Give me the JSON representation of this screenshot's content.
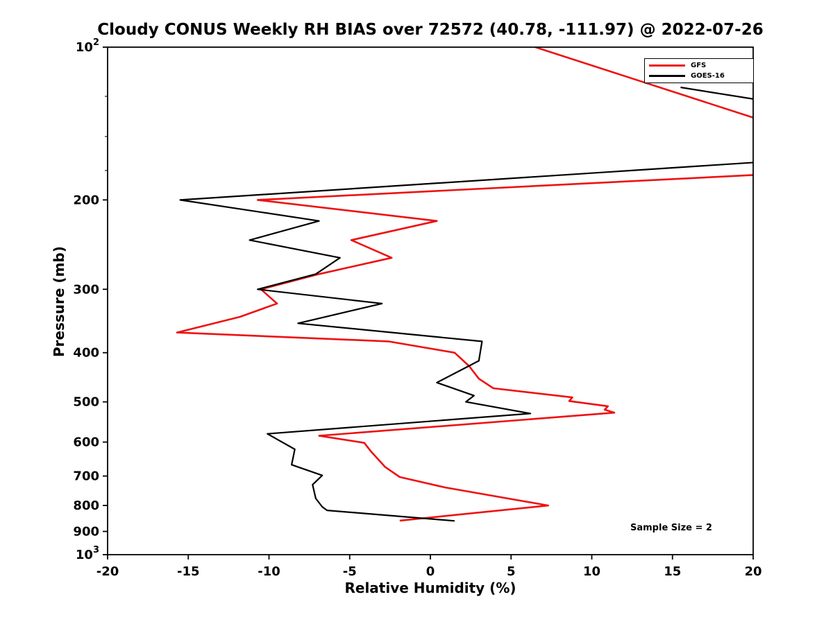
{
  "chart_data": {
    "type": "line",
    "title": "Cloudy CONUS Weekly RH BIAS over 72572 (40.78, -111.97) @ 2022-07-26",
    "annotation": "Sample Size = 2",
    "legend_position": "upper right",
    "grid": false,
    "x_axis": {
      "label": "Relative Humidity (%)",
      "min": -20,
      "max": 20,
      "ticks": [
        {
          "v": -20,
          "label": "-20"
        },
        {
          "v": -15,
          "label": "-15"
        },
        {
          "v": -10,
          "label": "-10"
        },
        {
          "v": -5,
          "label": "-5"
        },
        {
          "v": 0,
          "label": "0"
        },
        {
          "v": 5,
          "label": "5"
        },
        {
          "v": 10,
          "label": "10"
        },
        {
          "v": 15,
          "label": "15"
        },
        {
          "v": 20,
          "label": "20"
        }
      ]
    },
    "y_axis": {
      "label": "Pressure (mb)",
      "scale": "log",
      "inverted": true,
      "min": 100,
      "max": 1000,
      "major_ticks": [
        {
          "p": 100,
          "label": "10",
          "exp": "2"
        },
        {
          "p": 200,
          "label": "200"
        },
        {
          "p": 300,
          "label": "300"
        },
        {
          "p": 400,
          "label": "400"
        },
        {
          "p": 500,
          "label": "500"
        },
        {
          "p": 600,
          "label": "600"
        },
        {
          "p": 700,
          "label": "700"
        },
        {
          "p": 800,
          "label": "800"
        },
        {
          "p": 900,
          "label": "900"
        },
        {
          "p": 1000,
          "label": "10",
          "exp": "3"
        }
      ],
      "minor_ticks": [
        125,
        150,
        175
      ]
    },
    "series": [
      {
        "name": "GFS",
        "color": "#ee1111",
        "linewidth": 2.6,
        "units": "rh_bias_percent_vs_pressure_mb",
        "segments": [
          [
            [
              6.5,
              100
            ],
            [
              21,
              141
            ]
          ],
          [
            [
              21,
              178
            ],
            [
              -10.7,
              200
            ],
            [
              0.4,
              220
            ],
            [
              -4.9,
              240
            ],
            [
              -2.4,
              260
            ],
            [
              -6.9,
              280
            ],
            [
              -10.5,
              300
            ],
            [
              -9.5,
              320
            ],
            [
              -11.8,
              340
            ],
            [
              -15.7,
              365
            ],
            [
              -2.6,
              380
            ],
            [
              1.5,
              400
            ],
            [
              2.4,
              425
            ],
            [
              3.0,
              450
            ],
            [
              3.9,
              470
            ],
            [
              8.8,
              490
            ],
            [
              8.6,
              498
            ],
            [
              11.0,
              510
            ],
            [
              10.8,
              518
            ],
            [
              11.4,
              525
            ],
            [
              -6.9,
              583
            ],
            [
              -4.1,
              602
            ],
            [
              -3.7,
              625
            ],
            [
              -2.8,
              672
            ],
            [
              -1.9,
              703
            ],
            [
              0.9,
              737
            ],
            [
              7.3,
              800
            ],
            [
              -1.9,
              857
            ]
          ]
        ]
      },
      {
        "name": "GOES-16",
        "color": "#000000",
        "linewidth": 2.2,
        "units": "rh_bias_percent_vs_pressure_mb",
        "segments": [
          [
            [
              15.5,
              120
            ],
            [
              21,
              128
            ]
          ],
          [
            [
              21,
              168
            ],
            [
              -15.5,
              200
            ],
            [
              -6.9,
              220
            ],
            [
              -11.2,
              240
            ],
            [
              -5.6,
              260
            ],
            [
              -7.1,
              280
            ],
            [
              -10.7,
              300
            ],
            [
              -3.0,
              320
            ],
            [
              -8.2,
              350
            ],
            [
              3.2,
              380
            ],
            [
              3.0,
              415
            ],
            [
              0.4,
              458
            ],
            [
              2.7,
              486
            ],
            [
              2.2,
              500
            ],
            [
              6.2,
              527
            ],
            [
              -10.1,
              578
            ],
            [
              -8.4,
              620
            ],
            [
              -8.6,
              665
            ],
            [
              -6.7,
              698
            ],
            [
              -7.3,
              728
            ],
            [
              -7.1,
              775
            ],
            [
              -6.7,
              805
            ],
            [
              -6.4,
              818
            ],
            [
              1.5,
              858
            ]
          ]
        ]
      }
    ]
  }
}
